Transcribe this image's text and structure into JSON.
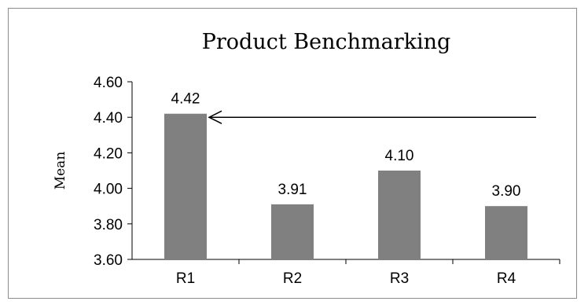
{
  "chart_data": {
    "type": "bar",
    "title": "Product Benchmarking",
    "xlabel": "",
    "ylabel": "Mean",
    "categories": [
      "R1",
      "R2",
      "R3",
      "R4"
    ],
    "values": [
      4.42,
      3.91,
      4.1,
      3.9
    ],
    "data_labels": [
      "4.42",
      "3.91",
      "4.10",
      "3.90"
    ],
    "ylim": [
      3.6,
      4.6
    ],
    "yticks": [
      "3.60",
      "3.80",
      "4.00",
      "4.20",
      "4.40",
      "4.60"
    ],
    "grid": false,
    "legend": "none",
    "bar_color": "#808080",
    "annotation": {
      "type": "arrow",
      "points_to": "R1",
      "at_value": 4.4
    }
  }
}
